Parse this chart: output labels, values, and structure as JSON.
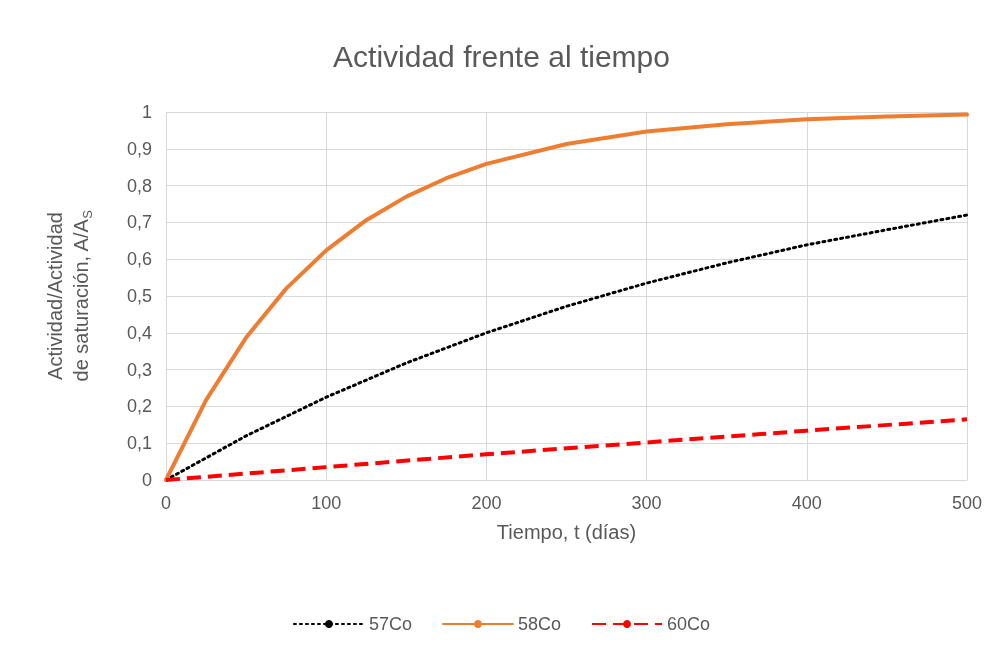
{
  "chart_data": {
    "type": "line",
    "title": "Actividad frente al tiempo",
    "xlabel": "Tiempo, t (días)",
    "ylabel": "Actividad/Actividad de saturación, A/A$_{S}$",
    "xlim": [
      0,
      500
    ],
    "xticks": [
      0,
      100,
      200,
      300,
      400,
      500
    ],
    "ylim": [
      0,
      1
    ],
    "yticks": [
      0,
      {
        "value": 0.1,
        "label": "0,1"
      },
      {
        "value": 0.2,
        "label": "0,2"
      },
      {
        "value": 0.3,
        "label": "0,3"
      },
      {
        "value": 0.4,
        "label": "0,4"
      },
      {
        "value": 0.5,
        "label": "0,5"
      },
      {
        "value": 0.6,
        "label": "0,6"
      },
      {
        "value": 0.7,
        "label": "0,7"
      },
      {
        "value": 0.8,
        "label": "0,8"
      },
      {
        "value": 0.9,
        "label": "0,9"
      },
      1
    ],
    "grid": true,
    "legend": "bottom",
    "marker": "none",
    "series": [
      {
        "name": "57Co",
        "color": "#000000",
        "line_style": "dotted",
        "x": [
          0,
          50,
          100,
          150,
          200,
          250,
          300,
          350,
          400,
          450,
          500
        ],
        "values": [
          0,
          0.12,
          0.225,
          0.318,
          0.4,
          0.472,
          0.535,
          0.59,
          0.639,
          0.68,
          0.72
        ]
      },
      {
        "name": "58Co",
        "color": "#ed7d31",
        "line_style": "solid",
        "x": [
          0,
          25,
          50,
          75,
          100,
          125,
          150,
          175,
          200,
          250,
          300,
          350,
          400,
          450,
          500
        ],
        "values": [
          0,
          0.217,
          0.387,
          0.52,
          0.624,
          0.706,
          0.77,
          0.82,
          0.859,
          0.913,
          0.947,
          0.967,
          0.98,
          0.988,
          0.993
        ]
      },
      {
        "name": "60Co",
        "color": "#ff0000",
        "line_style": "dashed",
        "x": [
          0,
          100,
          200,
          300,
          400,
          500
        ],
        "values": [
          0,
          0.035,
          0.07,
          0.102,
          0.134,
          0.165
        ]
      }
    ]
  }
}
